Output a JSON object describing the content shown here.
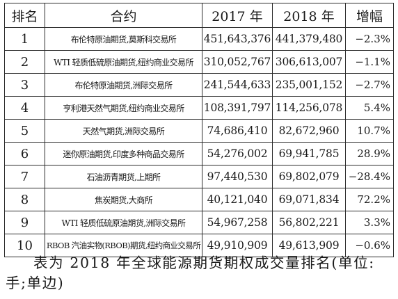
{
  "table": {
    "headers": {
      "rank": "排名",
      "contract": "合约",
      "y2017": "2017 年",
      "y2018": "2018 年",
      "growth": "增幅"
    },
    "rows": [
      {
        "rank": "1",
        "contract": "布伦特原油期货,莫斯科交易所",
        "y2017": "451,643,376",
        "y2018": "441,379,480",
        "growth": "−2.3%"
      },
      {
        "rank": "2",
        "contract": "WTI 轻质低硫原油期货,纽约商业交易所",
        "y2017": "310,052,767",
        "y2018": "306,613,007",
        "growth": "−1.1%"
      },
      {
        "rank": "3",
        "contract": "布伦特原油期货,洲际交易所",
        "y2017": "241,544,633",
        "y2018": "235,001,152",
        "growth": "−2.7%"
      },
      {
        "rank": "4",
        "contract": "亨利港天然气期货,纽约商业交易所",
        "y2017": "108,391,797",
        "y2018": "114,256,078",
        "growth": "5.4%"
      },
      {
        "rank": "5",
        "contract": "天然气期货,洲际交易所",
        "y2017": "74,686,410",
        "y2018": "82,672,960",
        "growth": "10.7%"
      },
      {
        "rank": "6",
        "contract": "迷你原油期货,印度多种商品交易所",
        "y2017": "54,276,002",
        "y2018": "69,941,785",
        "growth": "28.9%"
      },
      {
        "rank": "7",
        "contract": "石油沥青期货,上期所",
        "y2017": "97,440,530",
        "y2018": "69,802,079",
        "growth": "−28.4%"
      },
      {
        "rank": "8",
        "contract": "焦炭期货,大商所",
        "y2017": "40,121,040",
        "y2018": "69,071,834",
        "growth": "72.2%"
      },
      {
        "rank": "9",
        "contract": "WTI 轻质低硫原油期货,洲际交易所",
        "y2017": "54,967,258",
        "y2018": "56,802,221",
        "growth": "3.3%"
      },
      {
        "rank": "10",
        "contract": "RBOB 汽油实物(RBOB)期货,纽约商业交易所",
        "y2017": "49,910,909",
        "y2018": "49,613,909",
        "growth": "−0.6%"
      }
    ]
  },
  "caption": "表为 2018 年全球能源期货期权成交量排名(单位:手;单边)"
}
